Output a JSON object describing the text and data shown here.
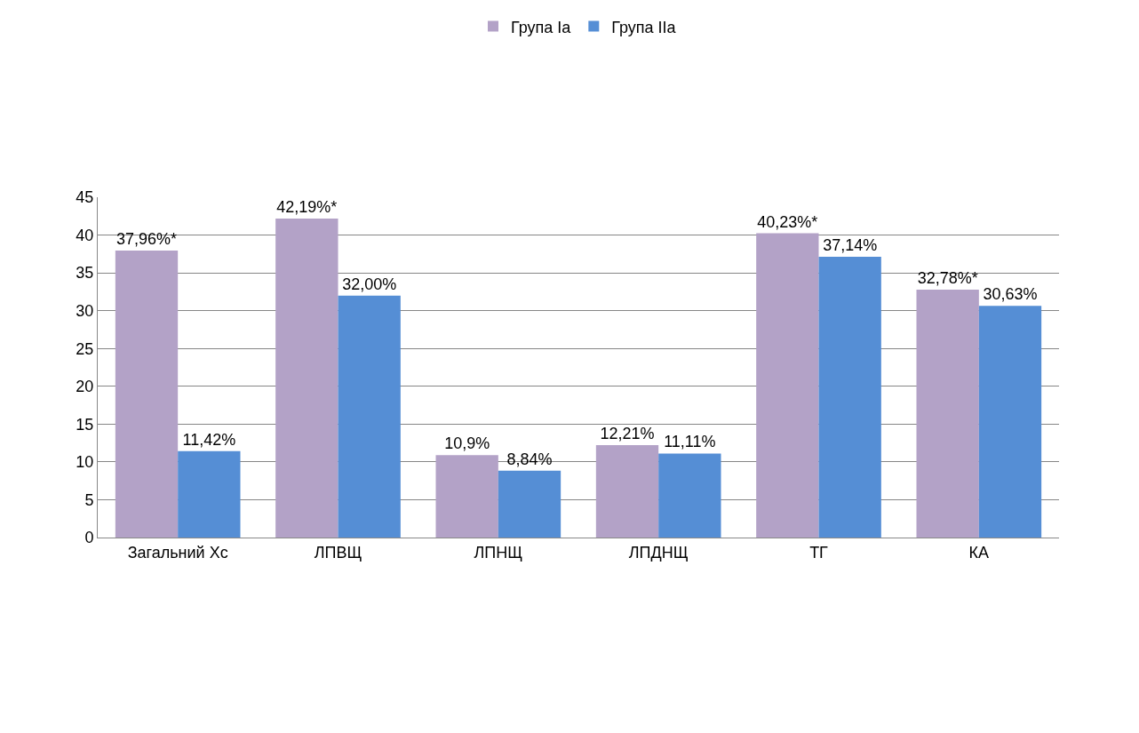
{
  "chart_data": {
    "type": "bar",
    "categories": [
      "Загальний Хс",
      "ЛПВЩ",
      "ЛПНЩ",
      "ЛПДНЩ",
      "ТГ",
      "КА"
    ],
    "series": [
      {
        "name": "Група Ia",
        "color": "#b3a2c7",
        "values": [
          37.96,
          42.19,
          10.9,
          12.21,
          40.23,
          32.78
        ],
        "value_labels": [
          "37,96%*",
          "42,19%*",
          "10,9%",
          "12,21%",
          "40,23%*",
          "32,78%*"
        ]
      },
      {
        "name": "Група IIa",
        "color": "#558ed5",
        "values": [
          11.42,
          32.0,
          8.84,
          11.11,
          37.14,
          30.63
        ],
        "value_labels": [
          "11,42%",
          "32,00%",
          "8,84%",
          "11,11%",
          "37,14%",
          "30,63%"
        ]
      }
    ],
    "ylim": [
      0,
      45
    ],
    "yticks": [
      0,
      5,
      10,
      15,
      20,
      25,
      30,
      35,
      40,
      45
    ],
    "grid": "y",
    "legend": "top"
  }
}
